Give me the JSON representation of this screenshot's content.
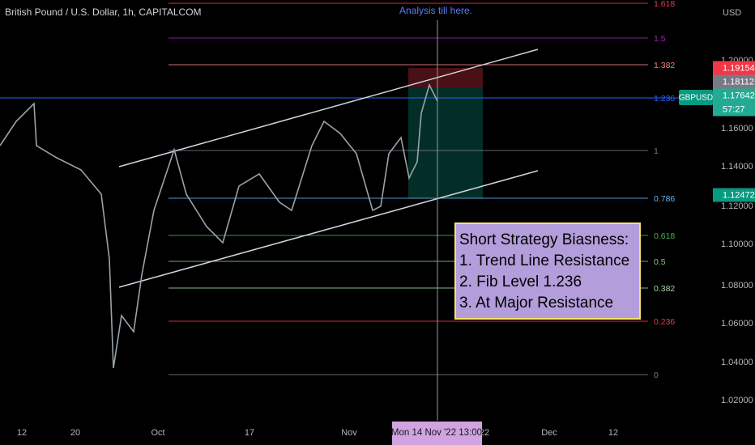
{
  "header": {
    "title": "British Pound / U.S. Dollar, 1h, CAPITALCOM"
  },
  "annotation": "Analysis till here.",
  "price_axis": {
    "currency": "USD",
    "ticks": [
      "1.20000",
      "1.16000",
      "1.14000",
      "1.12000",
      "1.10000",
      "1.08000",
      "1.06000",
      "1.04000",
      "1.02000"
    ]
  },
  "price_tags": [
    {
      "label": "1.19154",
      "color": "#f23645"
    },
    {
      "label": "1.18112",
      "color": "#787b86"
    },
    {
      "label": "1.17642",
      "color": "#22ab94"
    },
    {
      "label": "57:27",
      "color": "#22ab94"
    },
    {
      "label": "1.12472",
      "color": "#089981"
    }
  ],
  "symbol_tag": "GBPUSD",
  "fib_levels": [
    {
      "label": "1.618",
      "color": "#f23645"
    },
    {
      "label": "1.5",
      "color": "#9c27b0"
    },
    {
      "label": "1.382",
      "color": "#f77c80"
    },
    {
      "label": "1.236",
      "color": "#2962ff"
    },
    {
      "label": "1",
      "color": "#787b86"
    },
    {
      "label": "0.786",
      "color": "#64b5f6"
    },
    {
      "label": "0.618",
      "color": "#4caf50"
    },
    {
      "label": "0.5",
      "color": "#81c784"
    },
    {
      "label": "0.382",
      "color": "#a5d6a7"
    },
    {
      "label": "0.236",
      "color": "#f23645"
    },
    {
      "label": "0",
      "color": "#787b86"
    }
  ],
  "strategy_box": {
    "title": "Short Strategy Biasness:",
    "lines": [
      "1. Trend Line Resistance",
      "2. Fib Level 1.236",
      "3. At Major Resistance"
    ]
  },
  "time_axis": [
    "12",
    "20",
    "Oct",
    "17",
    "Nov",
    "22",
    "Dec",
    "12"
  ],
  "crosshair_label": "Mon 14 Nov '22   13:00"
}
